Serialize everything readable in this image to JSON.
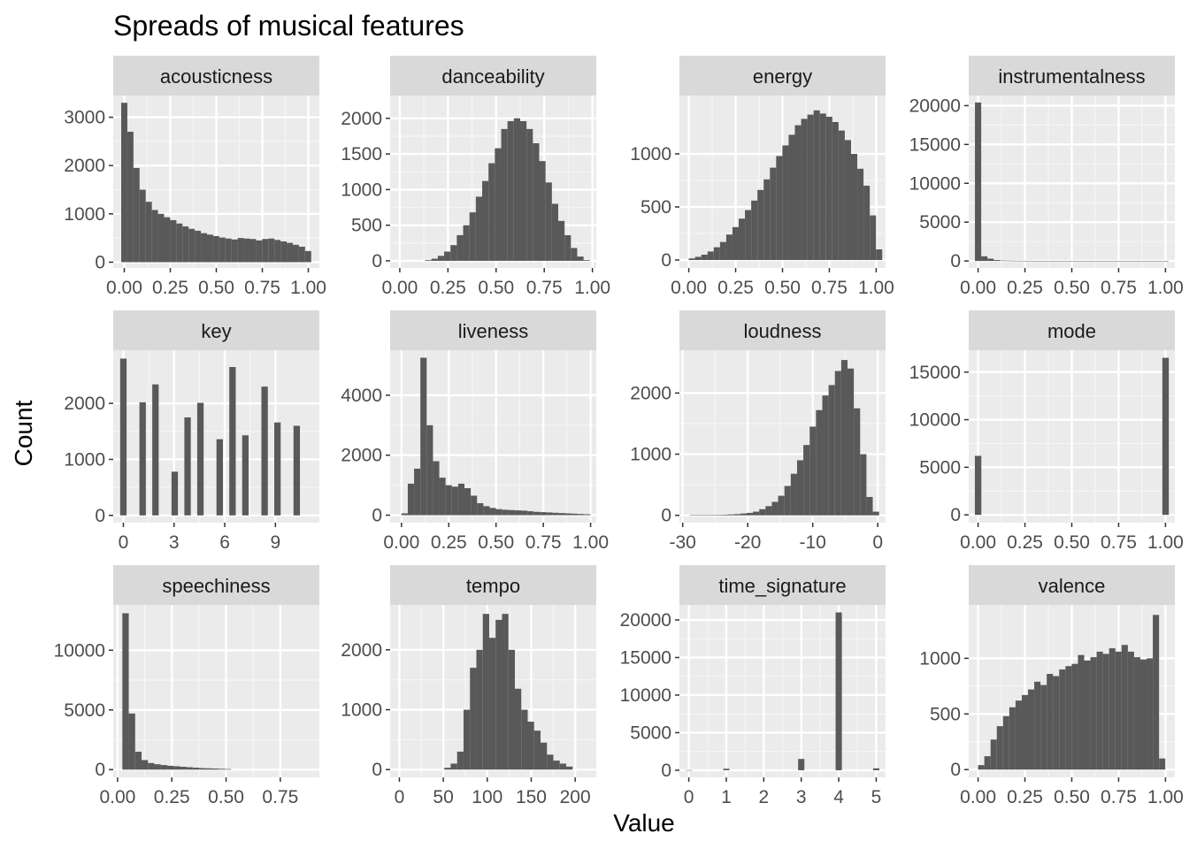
{
  "chart_data": {
    "type": "bar",
    "title": "Spreads of musical features",
    "xlabel": "Value",
    "ylabel": "Count",
    "colors": {
      "bar": "#595959",
      "panel": "#ebebeb",
      "strip": "#d9d9d9",
      "grid_major": "#ffffff",
      "grid_minor": "#f5f5f5",
      "text": "#4d4d4d"
    },
    "facets": [
      {
        "name": "acousticness",
        "xlim": [
          -0.06,
          1.06
        ],
        "ylim": [
          -120,
          3450
        ],
        "xticks": [
          0,
          0.25,
          0.5,
          0.75,
          1
        ],
        "xtick_labels": [
          "0.00",
          "0.25",
          "0.50",
          "0.75",
          "1.00"
        ],
        "yticks": [
          0,
          1000,
          2000,
          3000
        ],
        "ytick_labels": [
          "0",
          "1000",
          "2000",
          "3000"
        ],
        "bin_start": -0.0167,
        "bin_width": 0.0333,
        "counts": [
          3300,
          2700,
          1950,
          1500,
          1250,
          1080,
          1000,
          930,
          870,
          800,
          740,
          690,
          650,
          600,
          570,
          540,
          510,
          490,
          470,
          500,
          490,
          480,
          450,
          480,
          490,
          460,
          430,
          400,
          360,
          320,
          230
        ]
      },
      {
        "name": "danceability",
        "xlim": [
          -0.05,
          1.02
        ],
        "ylim": [
          -100,
          2320
        ],
        "xticks": [
          0,
          0.25,
          0.5,
          0.75,
          1
        ],
        "xtick_labels": [
          "0.00",
          "0.25",
          "0.50",
          "0.75",
          "1.00"
        ],
        "yticks": [
          0,
          500,
          1000,
          1500,
          2000
        ],
        "ytick_labels": [
          "0",
          "500",
          "1000",
          "1500",
          "2000"
        ],
        "bin_start": 0.0,
        "bin_width": 0.0329,
        "counts": [
          0,
          0,
          0,
          0,
          10,
          30,
          70,
          130,
          220,
          360,
          500,
          680,
          900,
          1120,
          1370,
          1580,
          1850,
          1960,
          2000,
          1960,
          1850,
          1650,
          1400,
          1100,
          800,
          560,
          360,
          180,
          60,
          10
        ]
      },
      {
        "name": "energy",
        "xlim": [
          -0.05,
          1.05
        ],
        "ylim": [
          -75,
          1550
        ],
        "xticks": [
          0,
          0.25,
          0.5,
          0.75,
          1
        ],
        "xtick_labels": [
          "0.00",
          "0.25",
          "0.50",
          "0.75",
          "1.00"
        ],
        "yticks": [
          0,
          500,
          1000
        ],
        "ytick_labels": [
          "0",
          "500",
          "1000"
        ],
        "bin_start": 0.0,
        "bin_width": 0.0333,
        "counts": [
          15,
          30,
          50,
          80,
          120,
          170,
          240,
          310,
          390,
          470,
          560,
          660,
          760,
          870,
          980,
          1080,
          1180,
          1270,
          1330,
          1370,
          1410,
          1380,
          1350,
          1300,
          1220,
          1130,
          1000,
          860,
          700,
          420,
          100
        ]
      },
      {
        "name": "instrumentalness",
        "xlim": [
          -0.05,
          1.05
        ],
        "ylim": [
          -900,
          21300
        ],
        "xticks": [
          0,
          0.25,
          0.5,
          0.75,
          1
        ],
        "xtick_labels": [
          "0.00",
          "0.25",
          "0.50",
          "0.75",
          "1.00"
        ],
        "yticks": [
          0,
          5000,
          10000,
          15000,
          20000
        ],
        "ytick_labels": [
          "0",
          "5000",
          "10000",
          "15000",
          "20000"
        ],
        "bin_start": -0.0167,
        "bin_width": 0.0333,
        "counts": [
          20400,
          600,
          300,
          120,
          60,
          40,
          30,
          20,
          20,
          15,
          10,
          10,
          10,
          10,
          10,
          10,
          10,
          10,
          10,
          10,
          10,
          10,
          10,
          10,
          10,
          10,
          10,
          10,
          10,
          10,
          10
        ]
      },
      {
        "name": "key",
        "xlim": [
          -0.6,
          11.6
        ],
        "ylim": [
          -130,
          2950
        ],
        "xticks": [
          0,
          3,
          6,
          9
        ],
        "xtick_labels": [
          "0",
          "3",
          "6",
          "9"
        ],
        "yticks": [
          0,
          1000,
          2000
        ],
        "ytick_labels": [
          "0",
          "1000",
          "2000"
        ],
        "bin_start": -0.19,
        "bin_width": 0.38,
        "counts": [
          2800,
          0,
          0,
          2020,
          0,
          2340,
          0,
          0,
          780,
          0,
          1750,
          0,
          2010,
          0,
          0,
          1360,
          0,
          2650,
          0,
          1430,
          0,
          0,
          2300,
          0,
          1660,
          0,
          0,
          1600
        ]
      },
      {
        "name": "liveness",
        "xlim": [
          -0.06,
          1.03
        ],
        "ylim": [
          -250,
          5500
        ],
        "xticks": [
          0,
          0.25,
          0.5,
          0.75,
          1
        ],
        "xtick_labels": [
          "0.00",
          "0.25",
          "0.50",
          "0.75",
          "1.00"
        ],
        "yticks": [
          0,
          2000,
          4000
        ],
        "ytick_labels": [
          "0",
          "2000",
          "4000"
        ],
        "bin_start": 0.0,
        "bin_width": 0.0333,
        "counts": [
          60,
          1050,
          1550,
          5250,
          3000,
          1800,
          1250,
          1000,
          950,
          1050,
          900,
          650,
          400,
          300,
          240,
          200,
          180,
          170,
          160,
          150,
          130,
          110,
          100,
          90,
          80,
          70,
          60,
          50,
          40,
          30
        ]
      },
      {
        "name": "loudness",
        "xlim": [
          -30.5,
          1.2
        ],
        "ylim": [
          -120,
          2700
        ],
        "xticks": [
          -30,
          -20,
          -10,
          0
        ],
        "xtick_labels": [
          "-30",
          "-20",
          "-10",
          "0"
        ],
        "yticks": [
          0,
          1000,
          2000
        ],
        "ytick_labels": [
          "0",
          "1000",
          "2000"
        ],
        "bin_start": -28.9,
        "bin_width": 0.97,
        "counts": [
          5,
          5,
          5,
          5,
          8,
          10,
          15,
          20,
          30,
          40,
          60,
          100,
          150,
          220,
          320,
          480,
          680,
          900,
          1150,
          1450,
          1720,
          1960,
          2130,
          2360,
          2540,
          2400,
          1750,
          1000,
          300,
          60
        ]
      },
      {
        "name": "mode",
        "xlim": [
          -0.05,
          1.05
        ],
        "ylim": [
          -820,
          17300
        ],
        "xticks": [
          0,
          0.25,
          0.5,
          0.75,
          1
        ],
        "xtick_labels": [
          "0.00",
          "0.25",
          "0.50",
          "0.75",
          "1.00"
        ],
        "yticks": [
          0,
          5000,
          10000,
          15000
        ],
        "ytick_labels": [
          "0",
          "5000",
          "10000",
          "15000"
        ],
        "bin_start": -0.0172,
        "bin_width": 0.0345,
        "counts": [
          6200,
          0,
          0,
          0,
          0,
          0,
          0,
          0,
          0,
          0,
          0,
          0,
          0,
          0,
          0,
          0,
          0,
          0,
          0,
          0,
          0,
          0,
          0,
          0,
          0,
          0,
          0,
          0,
          0,
          16500
        ]
      },
      {
        "name": "speechiness",
        "xlim": [
          -0.02,
          0.93
        ],
        "ylim": [
          -650,
          13800
        ],
        "xticks": [
          0,
          0.25,
          0.5,
          0.75
        ],
        "xtick_labels": [
          "0.00",
          "0.25",
          "0.50",
          "0.75"
        ],
        "yticks": [
          0,
          5000,
          10000
        ],
        "ytick_labels": [
          "0",
          "5000",
          "10000"
        ],
        "bin_start": 0.022,
        "bin_width": 0.0295,
        "counts": [
          13100,
          4700,
          1500,
          800,
          550,
          450,
          380,
          320,
          280,
          240,
          200,
          160,
          130,
          110,
          90,
          70,
          50,
          0,
          0,
          0,
          0,
          0,
          0,
          0,
          0,
          0,
          0,
          0,
          0,
          0
        ]
      },
      {
        "name": "tempo",
        "xlim": [
          -10.5,
          224
        ],
        "ylim": [
          -130,
          2750
        ],
        "xticks": [
          0,
          50,
          100,
          150,
          200
        ],
        "xtick_labels": [
          "0",
          "50",
          "100",
          "150",
          "200"
        ],
        "yticks": [
          0,
          1000,
          2000
        ],
        "ytick_labels": [
          "0",
          "1000",
          "2000"
        ],
        "bin_start": 0.0,
        "bin_width": 7.3,
        "counts": [
          0,
          0,
          0,
          0,
          0,
          0,
          0,
          30,
          100,
          300,
          1000,
          1700,
          2000,
          2600,
          2200,
          2500,
          2600,
          2000,
          1350,
          1000,
          800,
          650,
          450,
          250,
          150,
          100,
          50,
          0,
          0,
          0
        ]
      },
      {
        "name": "time_signature",
        "xlim": [
          -0.25,
          5.25
        ],
        "ylim": [
          -950,
          22000
        ],
        "xticks": [
          0,
          1,
          2,
          3,
          4,
          5
        ],
        "xtick_labels": [
          "0",
          "1",
          "2",
          "3",
          "4",
          "5"
        ],
        "yticks": [
          0,
          5000,
          10000,
          15000,
          20000
        ],
        "ytick_labels": [
          "0",
          "5000",
          "10000",
          "15000",
          "20000"
        ],
        "bin_start": -0.0833,
        "bin_width": 0.1667,
        "counts": [
          10,
          0,
          0,
          0,
          0,
          0,
          200,
          0,
          0,
          0,
          0,
          0,
          0,
          0,
          0,
          0,
          0,
          0,
          1500,
          0,
          0,
          0,
          0,
          0,
          21000,
          0,
          0,
          0,
          0,
          0,
          250
        ]
      },
      {
        "name": "valence",
        "xlim": [
          -0.05,
          1.05
        ],
        "ylim": [
          -70,
          1480
        ],
        "xticks": [
          0,
          0.25,
          0.5,
          0.75,
          1
        ],
        "xtick_labels": [
          "0.00",
          "0.25",
          "0.50",
          "0.75",
          "1.00"
        ],
        "yticks": [
          0,
          500,
          1000
        ],
        "ytick_labels": [
          "0",
          "500",
          "1000"
        ],
        "bin_start": 0.0,
        "bin_width": 0.0333,
        "counts": [
          40,
          120,
          270,
          390,
          480,
          560,
          620,
          670,
          720,
          790,
          760,
          860,
          840,
          900,
          930,
          950,
          1030,
          980,
          1010,
          1060,
          1040,
          1090,
          1060,
          1120,
          1060,
          1010,
          990,
          1000,
          1390,
          100
        ]
      }
    ]
  }
}
